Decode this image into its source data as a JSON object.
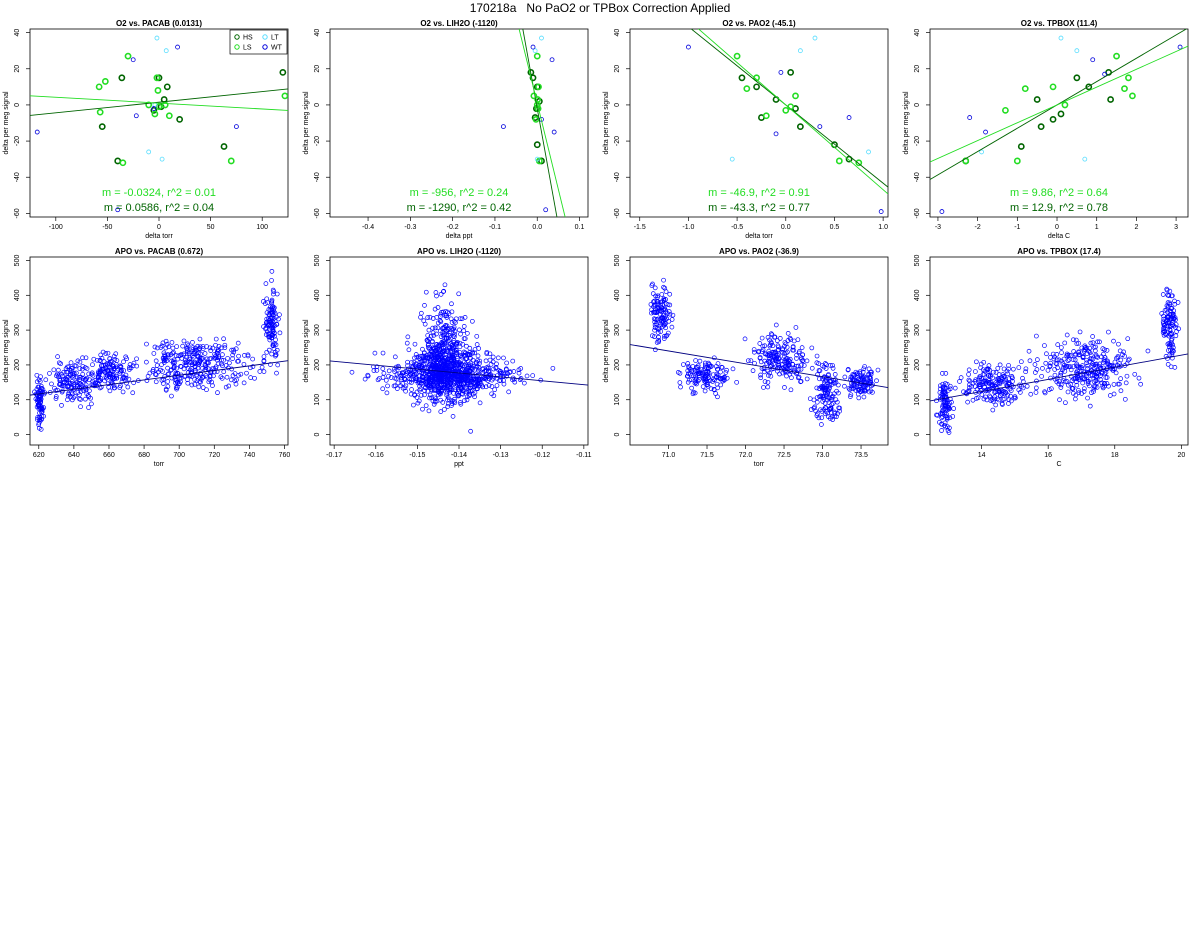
{
  "page": {
    "title": "170218a   No PaO2 or TPBox Correction Applied"
  },
  "colors": {
    "HS": "#006400",
    "LS": "#22dd22",
    "LT": "#55ddff",
    "WT": "#0000dd",
    "fit_dark": "#006400",
    "fit_light": "#22dd22",
    "apo_points": "#0000ff",
    "apo_fit": "#000080"
  },
  "chart_data": [
    {
      "type": "scatter",
      "title": "O2 vs. PACAB (0.0131)",
      "xlabel": "delta torr",
      "ylabel": "delta per meg signal",
      "xlim": [
        -125,
        125
      ],
      "ylim": [
        -62,
        42
      ],
      "xticks": [
        -100,
        -50,
        0,
        50,
        100
      ],
      "yticks": [
        -60,
        -40,
        -20,
        0,
        20,
        40
      ],
      "legend": {
        "position": "top-right",
        "entries": [
          {
            "label": "HS",
            "key": "HS"
          },
          {
            "label": "LT",
            "key": "LT"
          },
          {
            "label": "LS",
            "key": "LS"
          },
          {
            "label": "WT",
            "key": "WT"
          }
        ]
      },
      "series": [
        {
          "name": "HS",
          "points": [
            [
              -36,
              15
            ],
            [
              -55,
              -12
            ],
            [
              -40,
              -31
            ],
            [
              0,
              15
            ],
            [
              5,
              3
            ],
            [
              8,
              10
            ],
            [
              20,
              -8
            ],
            [
              63,
              -23
            ],
            [
              120,
              18
            ],
            [
              -5,
              -3
            ],
            [
              2,
              -1
            ]
          ]
        },
        {
          "name": "LS",
          "points": [
            [
              -30,
              27
            ],
            [
              -57,
              -4
            ],
            [
              -58,
              10
            ],
            [
              -35,
              -32
            ],
            [
              -10,
              0
            ],
            [
              -2,
              15
            ],
            [
              -1,
              8
            ],
            [
              10,
              -6
            ],
            [
              70,
              -31
            ],
            [
              122,
              5
            ],
            [
              -4,
              -5
            ],
            [
              0,
              -1
            ],
            [
              6,
              0
            ],
            [
              -52,
              13
            ]
          ]
        },
        {
          "name": "LT",
          "points": [
            [
              -2,
              37
            ],
            [
              7,
              30
            ],
            [
              -10,
              -26
            ],
            [
              3,
              -30
            ],
            [
              -4,
              0
            ]
          ]
        },
        {
          "name": "WT",
          "points": [
            [
              -118,
              -15
            ],
            [
              -22,
              -6
            ],
            [
              18,
              32
            ],
            [
              -25,
              25
            ],
            [
              -40,
              -58
            ],
            [
              75,
              -12
            ],
            [
              -5,
              -2
            ]
          ]
        }
      ],
      "fits": [
        {
          "name": "dark",
          "slope": 0.0586,
          "intercept": 1.5,
          "label": "m = 0.0586, r^2 = 0.04"
        },
        {
          "name": "light",
          "slope": -0.0324,
          "intercept": 1.0,
          "label": "m = -0.0324, r^2 = 0.01"
        }
      ]
    },
    {
      "type": "scatter",
      "title": "O2 vs. LIH2O (-1120)",
      "xlabel": "delta ppt",
      "ylabel": "delta per meg signal",
      "xlim": [
        -0.49,
        0.12
      ],
      "ylim": [
        -62,
        42
      ],
      "xticks": [
        -0.4,
        -0.3,
        -0.2,
        -0.1,
        0.0,
        0.1
      ],
      "yticks": [
        -60,
        -40,
        -20,
        0,
        20,
        40
      ],
      "series": [
        {
          "name": "HS",
          "points": [
            [
              -0.015,
              18
            ],
            [
              -0.01,
              15
            ],
            [
              0.0,
              10
            ],
            [
              -0.005,
              -7
            ],
            [
              0.0,
              -22
            ],
            [
              0.01,
              -31
            ],
            [
              -0.002,
              -2
            ],
            [
              0.005,
              2
            ]
          ]
        },
        {
          "name": "LS",
          "points": [
            [
              0.0,
              27
            ],
            [
              -0.008,
              5
            ],
            [
              0.002,
              -2
            ],
            [
              0.003,
              10
            ],
            [
              0.005,
              -31
            ],
            [
              -0.003,
              -8
            ],
            [
              0.0,
              0
            ],
            [
              0.001,
              3
            ]
          ]
        },
        {
          "name": "LT",
          "points": [
            [
              0.01,
              37
            ],
            [
              -0.005,
              30
            ],
            [
              0.0,
              -30
            ]
          ]
        },
        {
          "name": "WT",
          "points": [
            [
              -0.01,
              32
            ],
            [
              0.035,
              25
            ],
            [
              -0.08,
              -12
            ],
            [
              0.04,
              -15
            ],
            [
              0.02,
              -58
            ],
            [
              0.01,
              -8
            ]
          ]
        }
      ],
      "fits": [
        {
          "name": "dark",
          "slope": -1290,
          "intercept": -2,
          "label": "m = -1290, r^2 = 0.42"
        },
        {
          "name": "light",
          "slope": -956,
          "intercept": 1,
          "label": "m = -956, r^2 = 0.24"
        }
      ]
    },
    {
      "type": "scatter",
      "title": "O2 vs. PAO2 (-45.1)",
      "xlabel": "delta torr",
      "ylabel": "delta per meg signal",
      "xlim": [
        -1.6,
        1.05
      ],
      "ylim": [
        -62,
        42
      ],
      "xticks": [
        -1.5,
        -1.0,
        -0.5,
        0.0,
        0.5,
        1.0
      ],
      "yticks": [
        -60,
        -40,
        -20,
        0,
        20,
        40
      ],
      "series": [
        {
          "name": "HS",
          "points": [
            [
              -0.45,
              15
            ],
            [
              -0.3,
              10
            ],
            [
              -0.25,
              -7
            ],
            [
              0.05,
              18
            ],
            [
              0.15,
              -12
            ],
            [
              0.5,
              -22
            ],
            [
              0.65,
              -30
            ],
            [
              0.1,
              -2
            ],
            [
              -0.1,
              3
            ]
          ]
        },
        {
          "name": "LS",
          "points": [
            [
              -0.5,
              27
            ],
            [
              -0.3,
              15
            ],
            [
              -0.4,
              9
            ],
            [
              0.0,
              -3
            ],
            [
              0.55,
              -31
            ],
            [
              0.75,
              -32
            ],
            [
              -0.2,
              -6
            ],
            [
              0.1,
              5
            ],
            [
              0.05,
              -1
            ]
          ]
        },
        {
          "name": "LT",
          "points": [
            [
              -0.55,
              -30
            ],
            [
              0.3,
              37
            ],
            [
              0.15,
              30
            ],
            [
              0.85,
              -26
            ]
          ]
        },
        {
          "name": "WT",
          "points": [
            [
              -1.0,
              32
            ],
            [
              -0.1,
              -16
            ],
            [
              0.65,
              -7
            ],
            [
              0.98,
              -59
            ],
            [
              0.35,
              -12
            ],
            [
              -0.05,
              18
            ]
          ]
        }
      ],
      "fits": [
        {
          "name": "dark",
          "slope": -43.3,
          "intercept": 0,
          "label": "m = -43.3, r^2 = 0.77"
        },
        {
          "name": "light",
          "slope": -46.9,
          "intercept": 0,
          "label": "m = -46.9, r^2 = 0.91"
        }
      ]
    },
    {
      "type": "scatter",
      "title": "O2 vs. TPBOX (11.4)",
      "xlabel": "delta C",
      "ylabel": "delta per meg signal",
      "xlim": [
        -3.2,
        3.3
      ],
      "ylim": [
        -62,
        42
      ],
      "xticks": [
        -3,
        -2,
        -1,
        0,
        1,
        2,
        3
      ],
      "yticks": [
        -60,
        -40,
        -20,
        0,
        20,
        40
      ],
      "series": [
        {
          "name": "HS",
          "points": [
            [
              -2.3,
              -31
            ],
            [
              -0.9,
              -23
            ],
            [
              -0.4,
              -12
            ],
            [
              -0.5,
              3
            ],
            [
              0.1,
              -5
            ],
            [
              0.8,
              10
            ],
            [
              1.3,
              18
            ],
            [
              1.35,
              3
            ],
            [
              -0.1,
              -8
            ],
            [
              0.5,
              15
            ]
          ]
        },
        {
          "name": "LS",
          "points": [
            [
              -2.3,
              -31
            ],
            [
              -1.3,
              -3
            ],
            [
              -0.8,
              9
            ],
            [
              -0.1,
              10
            ],
            [
              1.5,
              27
            ],
            [
              1.7,
              9
            ],
            [
              1.8,
              15
            ],
            [
              -1.0,
              -31
            ],
            [
              0.2,
              0
            ],
            [
              1.9,
              5
            ]
          ]
        },
        {
          "name": "LT",
          "points": [
            [
              0.1,
              37
            ],
            [
              -1.9,
              -26
            ],
            [
              0.5,
              30
            ],
            [
              0.7,
              -30
            ]
          ]
        },
        {
          "name": "WT",
          "points": [
            [
              -2.9,
              -59
            ],
            [
              3.1,
              32
            ],
            [
              -2.2,
              -7
            ],
            [
              0.9,
              25
            ],
            [
              1.2,
              17
            ],
            [
              -1.8,
              -15
            ]
          ]
        }
      ],
      "fits": [
        {
          "name": "dark",
          "slope": 12.9,
          "intercept": 0,
          "label": "m = 12.9, r^2 = 0.78"
        },
        {
          "name": "light",
          "slope": 9.86,
          "intercept": 0,
          "label": "m = 9.86, r^2 = 0.64"
        }
      ]
    },
    {
      "type": "scatter",
      "title": "APO vs. PACAB (0.672)",
      "xlabel": "torr",
      "ylabel": "delta per meg signal",
      "xlim": [
        615,
        762
      ],
      "ylim": [
        -30,
        510
      ],
      "xticks": [
        620,
        640,
        660,
        680,
        700,
        720,
        740,
        760
      ],
      "yticks": [
        0,
        100,
        200,
        300,
        400,
        500
      ],
      "cloud": [
        {
          "x": [
            617,
            624
          ],
          "y": [
            -20,
            200
          ]
        },
        {
          "x": [
            620,
            660
          ],
          "y": [
            60,
            240
          ]
        },
        {
          "x": [
            640,
            680
          ],
          "y": [
            90,
            260
          ]
        },
        {
          "x": [
            665,
            755
          ],
          "y": [
            80,
            320
          ]
        },
        {
          "x": [
            745,
            760
          ],
          "y": [
            150,
            480
          ]
        }
      ],
      "fit": {
        "slope": 0.672,
        "intercept": -300
      }
    },
    {
      "type": "scatter",
      "title": "APO vs. LIH2O (-1120)",
      "xlabel": "ppt",
      "ylabel": "delta per meg signal",
      "xlim": [
        -0.171,
        -0.109
      ],
      "ylim": [
        -30,
        510
      ],
      "xticks": [
        -0.17,
        -0.16,
        -0.15,
        -0.14,
        -0.13,
        -0.12,
        -0.11
      ],
      "yticks": [
        0,
        100,
        200,
        300,
        400,
        500
      ],
      "cloud": [
        {
          "x": [
            -0.165,
            -0.12
          ],
          "y": [
            80,
            280
          ]
        },
        {
          "x": [
            -0.158,
            -0.128
          ],
          "y": [
            20,
            340
          ]
        },
        {
          "x": [
            -0.152,
            -0.135
          ],
          "y": [
            0,
            480
          ]
        },
        {
          "x": [
            -0.17,
            -0.113
          ],
          "y": [
            120,
            220
          ]
        }
      ],
      "fit": {
        "slope": -1120,
        "intercept": 20
      }
    },
    {
      "type": "scatter",
      "title": "APO vs. PAO2 (-36.9)",
      "xlabel": "torr",
      "ylabel": "delta per meg signal",
      "xlim": [
        70.5,
        73.85
      ],
      "ylim": [
        -30,
        510
      ],
      "xticks": [
        71.0,
        71.5,
        72.0,
        72.5,
        73.0,
        73.5
      ],
      "yticks": [
        0,
        100,
        200,
        300,
        400,
        500
      ],
      "cloud": [
        {
          "x": [
            70.7,
            71.1
          ],
          "y": [
            220,
            480
          ]
        },
        {
          "x": [
            71.0,
            72.0
          ],
          "y": [
            100,
            240
          ]
        },
        {
          "x": [
            71.9,
            73.0
          ],
          "y": [
            100,
            330
          ]
        },
        {
          "x": [
            72.8,
            73.3
          ],
          "y": [
            -10,
            260
          ]
        },
        {
          "x": [
            73.2,
            73.8
          ],
          "y": [
            80,
            220
          ]
        }
      ],
      "fit": {
        "slope": -36.9,
        "intercept": 2860
      }
    },
    {
      "type": "scatter",
      "title": "APO vs. TPBOX (17.4)",
      "xlabel": "C",
      "ylabel": "delta per meg signal",
      "xlim": [
        12.45,
        20.2
      ],
      "ylim": [
        -30,
        510
      ],
      "xticks": [
        14,
        16,
        18,
        20
      ],
      "yticks": [
        0,
        100,
        200,
        300,
        400,
        500
      ],
      "cloud": [
        {
          "x": [
            12.6,
            13.2
          ],
          "y": [
            -20,
            200
          ]
        },
        {
          "x": [
            12.8,
            16.0
          ],
          "y": [
            50,
            240
          ]
        },
        {
          "x": [
            15.0,
            19.3
          ],
          "y": [
            60,
            320
          ]
        },
        {
          "x": [
            19.3,
            20.0
          ],
          "y": [
            150,
            480
          ]
        }
      ],
      "fit": {
        "slope": 17.4,
        "intercept": -120
      }
    }
  ]
}
